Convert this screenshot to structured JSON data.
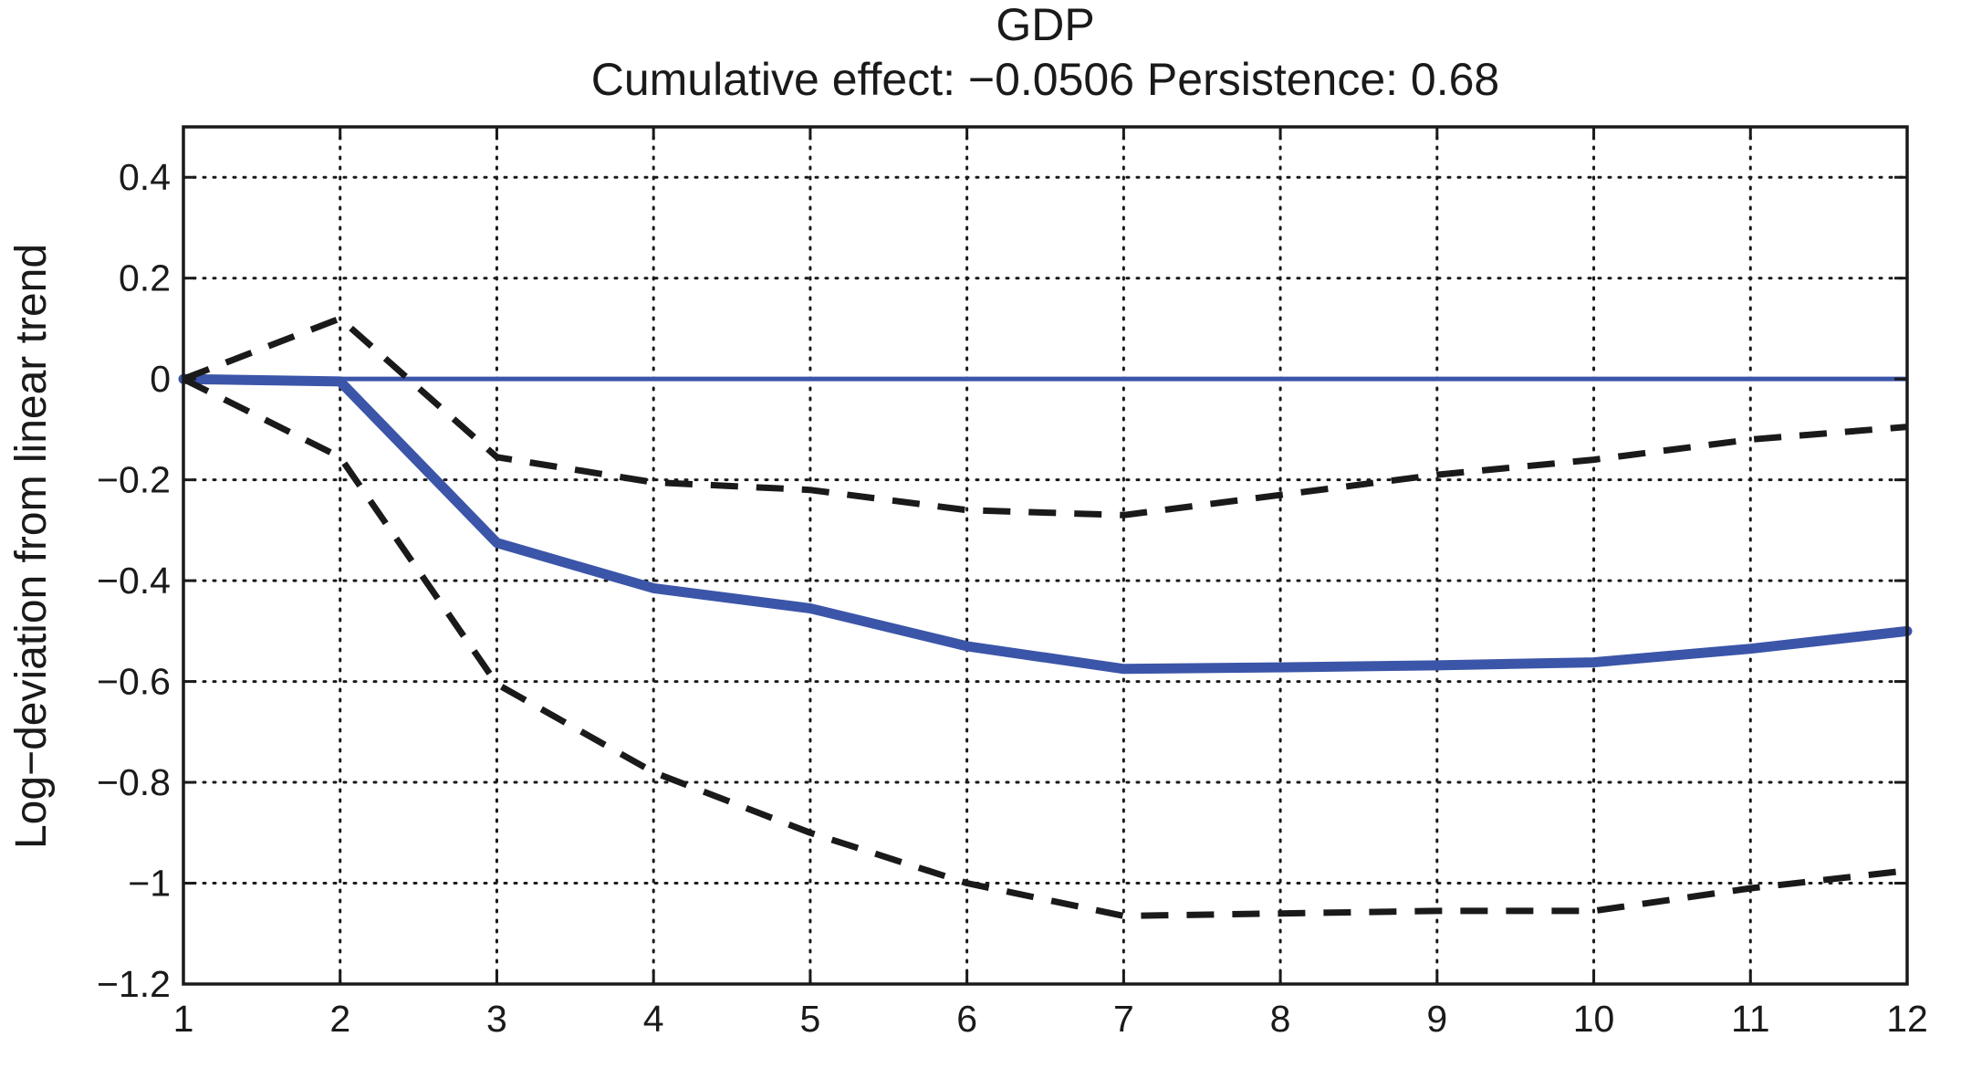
{
  "chart_data": {
    "type": "line",
    "title": "GDP",
    "subtitle": "Cumulative effect: −0.0506  Persistence: 0.68",
    "xlabel": "",
    "ylabel": "Log−deviation from linear trend",
    "xlim": [
      1,
      12
    ],
    "ylim": [
      -1.2,
      0.5
    ],
    "xticks": [
      1,
      2,
      3,
      4,
      5,
      6,
      7,
      8,
      9,
      10,
      11,
      12
    ],
    "xtick_labels": [
      "1",
      "2",
      "3",
      "4",
      "5",
      "6",
      "7",
      "8",
      "9",
      "10",
      "11",
      "12"
    ],
    "yticks": [
      -1.2,
      -1,
      -0.8,
      -0.6,
      -0.4,
      -0.2,
      0,
      0.2,
      0.4
    ],
    "ytick_labels": [
      "−1.2",
      "−1",
      "−0.8",
      "−0.6",
      "−0.4",
      "−0.2",
      "0",
      "0.2",
      "0.4"
    ],
    "grid": true,
    "x": [
      1,
      2,
      3,
      4,
      5,
      6,
      7,
      8,
      9,
      10,
      11,
      12
    ],
    "series": [
      {
        "values": [
          0,
          -0.005,
          -0.325,
          -0.415,
          -0.455,
          -0.53,
          -0.575,
          -0.572,
          -0.568,
          -0.562,
          -0.535,
          -0.5
        ],
        "color": "#3b55a8",
        "style": "solid"
      },
      {
        "values": [
          0,
          0.12,
          -0.155,
          -0.205,
          -0.22,
          -0.26,
          -0.27,
          -0.23,
          -0.19,
          -0.16,
          -0.12,
          -0.095
        ],
        "color": "#1a1a1a",
        "style": "dashed"
      },
      {
        "values": [
          0,
          -0.155,
          -0.605,
          -0.78,
          -0.9,
          -1.0,
          -1.065,
          -1.06,
          -1.055,
          -1.055,
          -1.01,
          -0.975
        ],
        "color": "#1a1a1a",
        "style": "dashed"
      }
    ],
    "reference_lines": [
      {
        "y": 0,
        "color": "#3b55a8"
      }
    ]
  }
}
